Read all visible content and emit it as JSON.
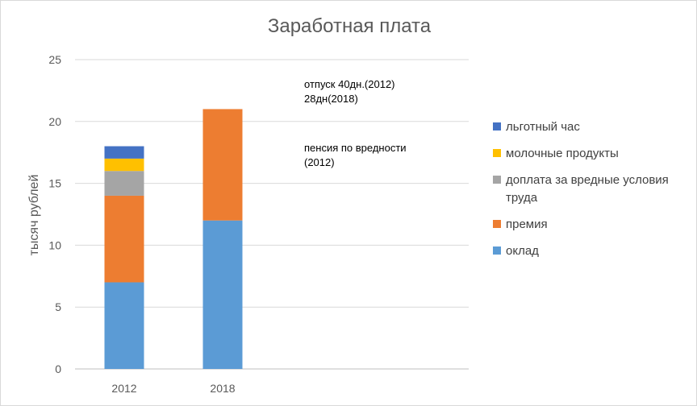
{
  "chart_data": {
    "type": "bar",
    "stacked": true,
    "title": "Заработная плата",
    "ylabel": "тысяч рублей",
    "xlabel": "",
    "categories": [
      "2012",
      "2018"
    ],
    "ylim": [
      0,
      25
    ],
    "yticks": [
      "0",
      "5",
      "10",
      "15",
      "20",
      "25"
    ],
    "grid": true,
    "legend_position": "right",
    "series": [
      {
        "name": "оклад",
        "values": [
          7,
          12
        ],
        "color": "#5b9bd5"
      },
      {
        "name": "премия",
        "values": [
          7,
          9
        ],
        "color": "#ed7d31"
      },
      {
        "name": "доплата за вредные условия труда",
        "values": [
          2,
          0
        ],
        "color": "#a5a5a5"
      },
      {
        "name": "молочные продукты",
        "values": [
          1,
          0
        ],
        "color": "#ffc000"
      },
      {
        "name": "льготный час",
        "values": [
          1,
          0
        ],
        "color": "#4472c4"
      }
    ],
    "annotations": [
      {
        "lines": [
          "отпуск 40дн.(2012)",
          "28дн(2018)"
        ]
      },
      {
        "lines": [
          "пенсия по вредности",
          "(2012)"
        ]
      }
    ]
  }
}
